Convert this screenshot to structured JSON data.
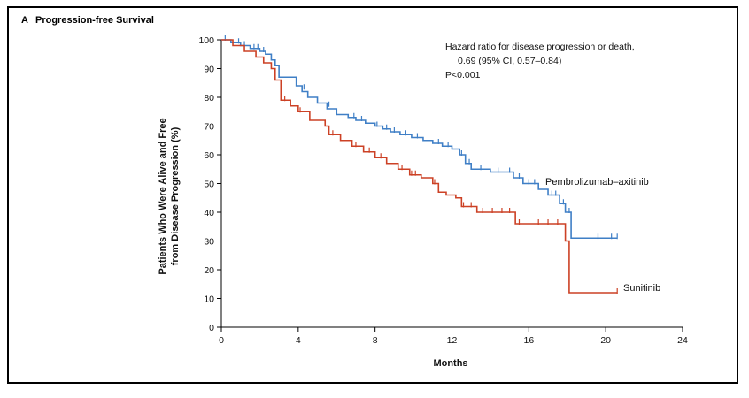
{
  "panel": {
    "letter": "A",
    "title": "Progression-free Survival"
  },
  "chart_data": {
    "type": "line",
    "step": true,
    "xlabel": "Months",
    "ylabel_lines": [
      "Patients Who Were Alive and Free",
      "from Disease Progression (%)"
    ],
    "xlim": [
      0,
      24
    ],
    "ylim": [
      0,
      100
    ],
    "xticks": [
      0,
      4,
      8,
      12,
      16,
      20,
      24
    ],
    "yticks": [
      0,
      10,
      20,
      30,
      40,
      50,
      60,
      70,
      80,
      90,
      100
    ],
    "grid": false,
    "annotation_lines": [
      "Hazard ratio for disease progression or death,",
      "0.69 (95% CI, 0.57–0.84)",
      "P<0.001"
    ],
    "series": [
      {
        "name": "Pembrolizumab–axitinib",
        "color": "#3f7fc6",
        "x": [
          0,
          0.5,
          1.0,
          1.5,
          2.0,
          2.3,
          2.6,
          2.8,
          3.0,
          3.9,
          4.2,
          4.5,
          5.0,
          5.5,
          6.0,
          6.6,
          7.0,
          7.5,
          8.0,
          8.4,
          8.8,
          9.3,
          9.9,
          10.5,
          11.0,
          11.5,
          12.0,
          12.4,
          12.7,
          13.0,
          14.0,
          15.2,
          15.7,
          16.5,
          17.0,
          17.6,
          17.9,
          18.2,
          20.6
        ],
        "y": [
          100,
          99,
          98,
          97,
          96,
          95,
          93,
          91,
          87,
          84,
          82,
          80,
          78,
          76,
          74,
          73,
          72,
          71,
          70,
          69,
          68,
          67,
          66,
          65,
          64,
          63,
          62,
          60,
          57,
          55,
          54,
          52,
          50,
          48,
          46,
          43,
          40,
          31,
          31
        ],
        "censored": [
          [
            0.2,
            100
          ],
          [
            0.9,
            99
          ],
          [
            1.2,
            98
          ],
          [
            1.7,
            97
          ],
          [
            1.9,
            97
          ],
          [
            2.2,
            96
          ],
          [
            4.3,
            83
          ],
          [
            5.6,
            77
          ],
          [
            6.9,
            73
          ],
          [
            7.3,
            72
          ],
          [
            8.1,
            70
          ],
          [
            8.6,
            69
          ],
          [
            9.0,
            68
          ],
          [
            9.6,
            67
          ],
          [
            10.2,
            66
          ],
          [
            11.3,
            64
          ],
          [
            11.8,
            63
          ],
          [
            12.5,
            60
          ],
          [
            12.9,
            57
          ],
          [
            13.5,
            55
          ],
          [
            14.4,
            54
          ],
          [
            15.0,
            54
          ],
          [
            15.5,
            52
          ],
          [
            16.0,
            50
          ],
          [
            16.3,
            50
          ],
          [
            17.2,
            46
          ],
          [
            17.4,
            46
          ],
          [
            17.8,
            43
          ],
          [
            18.1,
            40
          ],
          [
            19.6,
            31
          ],
          [
            20.3,
            31
          ],
          [
            20.6,
            31
          ]
        ]
      },
      {
        "name": "Sunitinib",
        "color": "#cc4125",
        "x": [
          0,
          0.6,
          1.2,
          1.8,
          2.2,
          2.6,
          2.8,
          3.1,
          3.6,
          4.0,
          4.6,
          5.4,
          5.6,
          6.2,
          6.8,
          7.4,
          8.0,
          8.6,
          9.2,
          9.8,
          10.4,
          11.0,
          11.3,
          11.7,
          12.2,
          12.5,
          13.3,
          15.3,
          17.2,
          17.9,
          18.1,
          20.6
        ],
        "y": [
          100,
          98,
          96,
          94,
          92,
          90,
          86,
          79,
          77,
          75,
          72,
          70,
          67,
          65,
          63,
          61,
          59,
          57,
          55,
          53,
          52,
          50,
          47,
          46,
          45,
          42,
          40,
          36,
          36,
          30,
          12,
          12
        ],
        "censored": [
          [
            3.3,
            79
          ],
          [
            4.1,
            75
          ],
          [
            5.8,
            67
          ],
          [
            7.0,
            63
          ],
          [
            7.7,
            61
          ],
          [
            8.3,
            59
          ],
          [
            9.4,
            55
          ],
          [
            9.9,
            53
          ],
          [
            10.1,
            53
          ],
          [
            11.1,
            50
          ],
          [
            12.6,
            42
          ],
          [
            13.0,
            42
          ],
          [
            13.6,
            40
          ],
          [
            14.1,
            40
          ],
          [
            14.6,
            40
          ],
          [
            15.0,
            40
          ],
          [
            15.5,
            36
          ],
          [
            16.5,
            36
          ],
          [
            17.0,
            36
          ],
          [
            17.5,
            36
          ],
          [
            20.6,
            12
          ]
        ]
      }
    ]
  }
}
